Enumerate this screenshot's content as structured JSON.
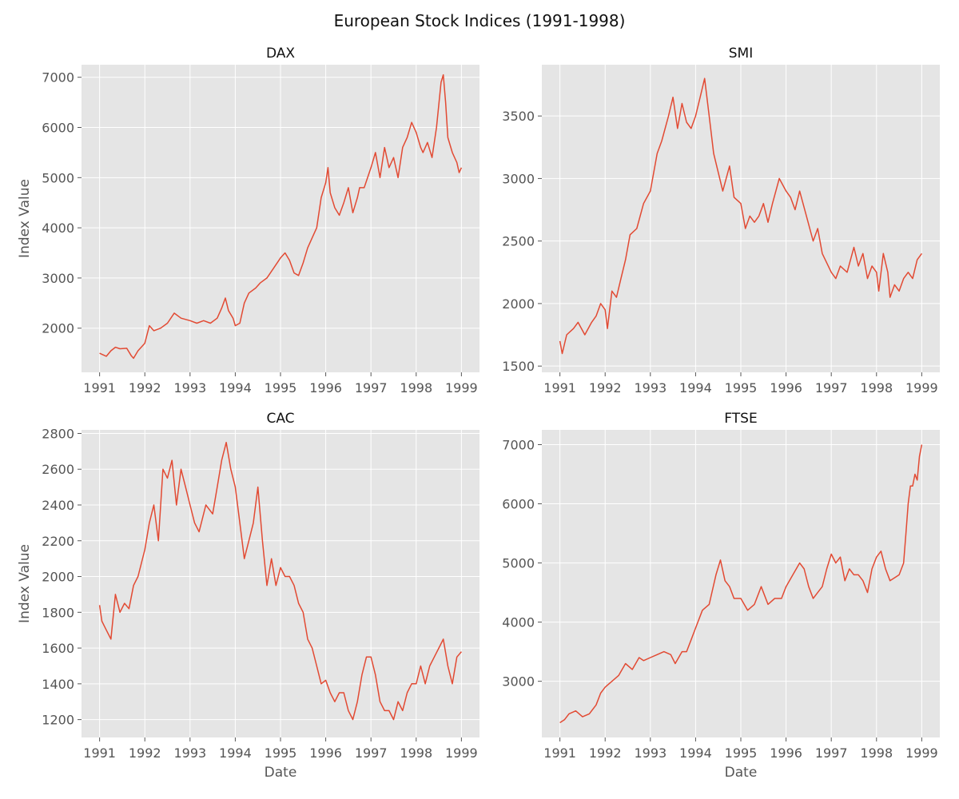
{
  "figure": {
    "title": "European Stock Indices (1991-1998)"
  },
  "style": {
    "line_color": "#e24a33",
    "plot_bg": "#e5e5e5",
    "grid_color": "#ffffff",
    "tick_color": "#555555"
  },
  "chart_data": [
    {
      "type": "line",
      "title": "DAX",
      "xlabel": "",
      "ylabel": "Index Value",
      "x_ticks": [
        1991,
        1992,
        1993,
        1994,
        1995,
        1996,
        1997,
        1998,
        1999
      ],
      "y_ticks": [
        2000,
        3000,
        4000,
        5000,
        6000,
        7000
      ],
      "xlim": [
        1990.6,
        1999.4
      ],
      "ylim": [
        1120,
        7250
      ],
      "grid": true,
      "series": [
        {
          "x": [
            1991.0,
            1991.05,
            1991.15,
            1991.25,
            1991.35,
            1991.45,
            1991.6,
            1991.7,
            1991.75,
            1991.85,
            1992.0,
            1992.1,
            1992.15,
            1992.2,
            1992.35,
            1992.5,
            1992.65,
            1992.8,
            1993.0,
            1993.15,
            1993.3,
            1993.45,
            1993.6,
            1993.7,
            1993.78,
            1993.85,
            1993.95,
            1994.0,
            1994.1,
            1994.2,
            1994.3,
            1994.45,
            1994.55,
            1994.7,
            1994.85,
            1995.0,
            1995.1,
            1995.2,
            1995.3,
            1995.4,
            1995.5,
            1995.6,
            1995.7,
            1995.8,
            1995.9,
            1996.0,
            1996.05,
            1996.1,
            1996.2,
            1996.3,
            1996.4,
            1996.5,
            1996.6,
            1996.7,
            1996.75,
            1996.85,
            1997.0,
            1997.1,
            1997.2,
            1997.3,
            1997.4,
            1997.5,
            1997.6,
            1997.7,
            1997.8,
            1997.9,
            1998.0,
            1998.1,
            1998.15,
            1998.25,
            1998.35,
            1998.45,
            1998.55,
            1998.6,
            1998.65,
            1998.7,
            1998.8,
            1998.9,
            1998.95,
            1999.0
          ],
          "values": [
            1500,
            1480,
            1440,
            1550,
            1620,
            1590,
            1600,
            1450,
            1400,
            1550,
            1700,
            2050,
            2000,
            1950,
            2000,
            2100,
            2300,
            2200,
            2150,
            2100,
            2150,
            2100,
            2200,
            2400,
            2600,
            2350,
            2200,
            2050,
            2100,
            2500,
            2700,
            2800,
            2900,
            3000,
            3200,
            3400,
            3500,
            3350,
            3100,
            3050,
            3300,
            3600,
            3800,
            4000,
            4600,
            4900,
            5200,
            4700,
            4400,
            4250,
            4500,
            4800,
            4300,
            4600,
            4800,
            4800,
            5200,
            5500,
            5000,
            5600,
            5200,
            5400,
            5000,
            5600,
            5800,
            6100,
            5900,
            5600,
            5500,
            5700,
            5400,
            6000,
            6900,
            7050,
            6500,
            5800,
            5500,
            5300,
            5100,
            5200
          ]
        }
      ]
    },
    {
      "type": "line",
      "title": "SMI",
      "xlabel": "",
      "ylabel": "",
      "x_ticks": [
        1991,
        1992,
        1993,
        1994,
        1995,
        1996,
        1997,
        1998,
        1999
      ],
      "y_ticks": [
        1500,
        2000,
        2500,
        3000,
        3500
      ],
      "xlim": [
        1990.6,
        1999.4
      ],
      "ylim": [
        1450,
        3910
      ],
      "grid": true,
      "series": [
        {
          "x": [
            1991.0,
            1991.05,
            1991.15,
            1991.3,
            1991.4,
            1991.55,
            1991.7,
            1991.8,
            1991.9,
            1992.0,
            1992.05,
            1992.15,
            1992.25,
            1992.35,
            1992.45,
            1992.55,
            1992.7,
            1992.85,
            1993.0,
            1993.15,
            1993.25,
            1993.4,
            1993.5,
            1993.6,
            1993.7,
            1993.8,
            1993.9,
            1994.0,
            1994.1,
            1994.2,
            1994.3,
            1994.4,
            1994.5,
            1994.6,
            1994.75,
            1994.85,
            1995.0,
            1995.1,
            1995.2,
            1995.3,
            1995.4,
            1995.5,
            1995.6,
            1995.7,
            1995.85,
            1996.0,
            1996.1,
            1996.2,
            1996.3,
            1996.45,
            1996.6,
            1996.7,
            1996.8,
            1997.0,
            1997.1,
            1997.2,
            1997.35,
            1997.5,
            1997.6,
            1997.7,
            1997.8,
            1997.9,
            1998.0,
            1998.05,
            1998.15,
            1998.25,
            1998.3,
            1998.4,
            1998.5,
            1998.6,
            1998.7,
            1998.8,
            1998.9,
            1999.0
          ],
          "values": [
            1700,
            1600,
            1750,
            1800,
            1850,
            1750,
            1850,
            1900,
            2000,
            1950,
            1800,
            2100,
            2050,
            2200,
            2350,
            2550,
            2600,
            2800,
            2900,
            3200,
            3300,
            3500,
            3650,
            3400,
            3600,
            3450,
            3400,
            3500,
            3650,
            3800,
            3500,
            3200,
            3050,
            2900,
            3100,
            2850,
            2800,
            2600,
            2700,
            2650,
            2700,
            2800,
            2650,
            2800,
            3000,
            2900,
            2850,
            2750,
            2900,
            2700,
            2500,
            2600,
            2400,
            2250,
            2200,
            2300,
            2250,
            2450,
            2300,
            2400,
            2200,
            2300,
            2250,
            2100,
            2400,
            2250,
            2050,
            2150,
            2100,
            2200,
            2250,
            2200,
            2350,
            2400
          ]
        }
      ]
    },
    {
      "type": "line",
      "title": "CAC",
      "xlabel": "Date",
      "ylabel": "Index Value",
      "x_ticks": [
        1991,
        1992,
        1993,
        1994,
        1995,
        1996,
        1997,
        1998,
        1999
      ],
      "y_ticks": [
        1200,
        1400,
        1600,
        1800,
        2000,
        2200,
        2400,
        2600,
        2800
      ],
      "xlim": [
        1990.6,
        1999.4
      ],
      "ylim": [
        1100,
        2820
      ],
      "grid": true,
      "series": [
        {
          "x": [
            1991.0,
            1991.05,
            1991.15,
            1991.25,
            1991.35,
            1991.45,
            1991.55,
            1991.65,
            1991.75,
            1991.85,
            1992.0,
            1992.1,
            1992.2,
            1992.3,
            1992.4,
            1992.5,
            1992.6,
            1992.7,
            1992.8,
            1992.9,
            1993.0,
            1993.1,
            1993.2,
            1993.35,
            1993.5,
            1993.6,
            1993.7,
            1993.8,
            1993.9,
            1994.0,
            1994.1,
            1994.2,
            1994.3,
            1994.4,
            1994.5,
            1994.6,
            1994.7,
            1994.8,
            1994.9,
            1995.0,
            1995.1,
            1995.2,
            1995.3,
            1995.4,
            1995.5,
            1995.6,
            1995.7,
            1995.8,
            1995.9,
            1996.0,
            1996.1,
            1996.2,
            1996.3,
            1996.4,
            1996.5,
            1996.6,
            1996.7,
            1996.8,
            1996.9,
            1997.0,
            1997.1,
            1997.2,
            1997.3,
            1997.4,
            1997.5,
            1997.6,
            1997.7,
            1997.8,
            1997.9,
            1998.0,
            1998.1,
            1998.2,
            1998.3,
            1998.4,
            1998.5,
            1998.6,
            1998.7,
            1998.8,
            1998.9,
            1999.0
          ],
          "values": [
            1840,
            1750,
            1700,
            1650,
            1900,
            1800,
            1850,
            1820,
            1950,
            2000,
            2150,
            2300,
            2400,
            2200,
            2600,
            2550,
            2650,
            2400,
            2600,
            2500,
            2400,
            2300,
            2250,
            2400,
            2350,
            2500,
            2650,
            2750,
            2600,
            2500,
            2300,
            2100,
            2200,
            2300,
            2500,
            2200,
            1950,
            2100,
            1950,
            2050,
            2000,
            2000,
            1950,
            1850,
            1800,
            1650,
            1600,
            1500,
            1400,
            1420,
            1350,
            1300,
            1350,
            1350,
            1250,
            1200,
            1300,
            1450,
            1550,
            1550,
            1450,
            1300,
            1250,
            1250,
            1200,
            1300,
            1250,
            1350,
            1400,
            1400,
            1500,
            1400,
            1500,
            1550,
            1600,
            1650,
            1500,
            1400,
            1550,
            1580
          ]
        }
      ]
    },
    {
      "type": "line",
      "title": "FTSE",
      "xlabel": "Date",
      "ylabel": "",
      "x_ticks": [
        1991,
        1992,
        1993,
        1994,
        1995,
        1996,
        1997,
        1998,
        1999
      ],
      "y_ticks": [
        3000,
        4000,
        5000,
        6000,
        7000
      ],
      "xlim": [
        1990.6,
        1999.4
      ],
      "ylim": [
        2050,
        7250
      ],
      "grid": true,
      "series": [
        {
          "x": [
            1991.0,
            1991.1,
            1991.2,
            1991.35,
            1991.5,
            1991.65,
            1991.8,
            1991.9,
            1992.0,
            1992.15,
            1992.3,
            1992.45,
            1992.6,
            1992.75,
            1992.85,
            1993.0,
            1993.15,
            1993.3,
            1993.45,
            1993.55,
            1993.7,
            1993.8,
            1993.9,
            1994.0,
            1994.15,
            1994.3,
            1994.45,
            1994.55,
            1994.65,
            1994.75,
            1994.85,
            1995.0,
            1995.15,
            1995.3,
            1995.45,
            1995.6,
            1995.75,
            1995.9,
            1996.0,
            1996.15,
            1996.3,
            1996.4,
            1996.5,
            1996.6,
            1996.7,
            1996.8,
            1996.9,
            1997.0,
            1997.1,
            1997.2,
            1997.3,
            1997.4,
            1997.5,
            1997.6,
            1997.7,
            1997.8,
            1997.9,
            1998.0,
            1998.1,
            1998.2,
            1998.3,
            1998.4,
            1998.5,
            1998.6,
            1998.65,
            1998.7,
            1998.75,
            1998.8,
            1998.85,
            1998.9,
            1998.95,
            1999.0
          ],
          "values": [
            2300,
            2350,
            2450,
            2500,
            2400,
            2450,
            2600,
            2800,
            2900,
            3000,
            3100,
            3300,
            3200,
            3400,
            3350,
            3400,
            3450,
            3500,
            3450,
            3300,
            3500,
            3500,
            3700,
            3900,
            4200,
            4300,
            4800,
            5050,
            4700,
            4600,
            4400,
            4400,
            4200,
            4300,
            4600,
            4300,
            4400,
            4400,
            4600,
            4800,
            5000,
            4900,
            4600,
            4400,
            4500,
            4600,
            4900,
            5150,
            5000,
            5100,
            4700,
            4900,
            4800,
            4800,
            4700,
            4500,
            4900,
            5100,
            5200,
            4900,
            4700,
            4750,
            4800,
            5000,
            5500,
            6000,
            6300,
            6300,
            6500,
            6400,
            6800,
            7000
          ]
        }
      ]
    }
  ]
}
